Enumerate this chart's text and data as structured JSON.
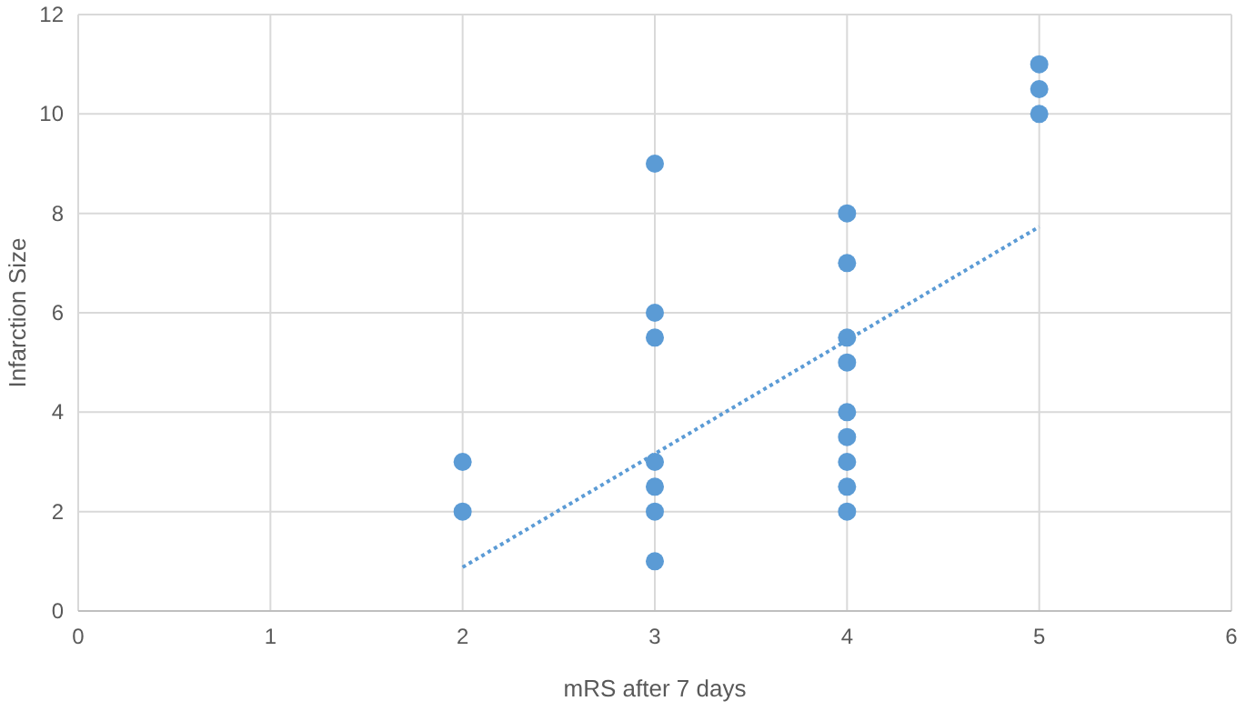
{
  "chart_data": {
    "type": "scatter",
    "xlabel": "mRS after 7 days",
    "ylabel": "Infarction Size",
    "xlim": [
      0,
      6
    ],
    "xticks": [
      0,
      1,
      2,
      3,
      4,
      5,
      6
    ],
    "ylim": [
      0,
      12
    ],
    "yticks": [
      0,
      2,
      4,
      6,
      8,
      10,
      12
    ],
    "grid": true,
    "series": [
      {
        "type": "scatter",
        "color": "#5b9bd5",
        "marker": "circle",
        "x": [
          2,
          2,
          3,
          3,
          3,
          3,
          3,
          3,
          3,
          4,
          4,
          4,
          4,
          4,
          4,
          4,
          4,
          4,
          5,
          5,
          5
        ],
        "values": [
          3,
          2,
          9,
          6,
          5.5,
          3,
          2.5,
          2,
          1,
          8,
          7,
          5.5,
          5,
          4,
          3.5,
          3,
          2.5,
          2,
          11,
          10.5,
          10
        ]
      },
      {
        "type": "line",
        "color": "#5b9bd5",
        "marker": "none",
        "line_style": "dotted",
        "x": [
          2,
          5
        ],
        "values": [
          0.88,
          7.73
        ]
      }
    ]
  }
}
